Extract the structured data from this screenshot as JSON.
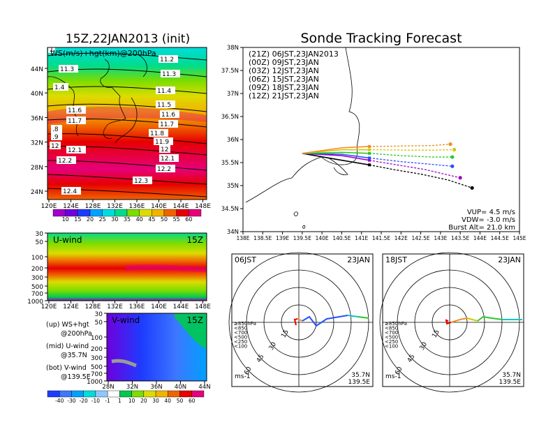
{
  "left_title": "15Z,22JAN2013 (init)",
  "right_title": "Sonde Tracking Forecast",
  "upper_map": {
    "inner_label": "WS(m/s)+hgt(km)@200hPa",
    "lat_ticks": [
      "44N",
      "40N",
      "36N",
      "32N",
      "28N",
      "24N"
    ],
    "lon_ticks": [
      "120E",
      "124E",
      "128E",
      "132E",
      "136E",
      "140E",
      "144E",
      "148E"
    ],
    "contour_labels": [
      "11.2",
      "11.3",
      "11.3",
      "11.4",
      "11.5",
      "11.6",
      "11.6",
      "11.7",
      "11.7",
      "11.8",
      "11.9",
      "12",
      "12",
      "12.1",
      "12.1",
      "12.2",
      "12.2",
      "12.3",
      "12.4",
      "1.4",
      ".8",
      ".9",
      "1"
    ],
    "colorbar": {
      "labels": [
        "10",
        "15",
        "20",
        "25",
        "30",
        "35",
        "40",
        "45",
        "50",
        "55",
        "60"
      ],
      "colors": [
        "#a000c8",
        "#6e00dc",
        "#1e3cff",
        "#00a0ff",
        "#00dcdc",
        "#00dc8c",
        "#7ddc00",
        "#dcdc00",
        "#f0b400",
        "#f06400",
        "#e60000",
        "#e6007a"
      ]
    }
  },
  "uwind": {
    "label": "U-wind",
    "time": "15Z",
    "p_ticks": [
      "30",
      "50",
      "100",
      "200",
      "300",
      "500",
      "700",
      "1000"
    ],
    "lon_ticks": [
      "120E",
      "124E",
      "128E",
      "132E",
      "136E",
      "140E",
      "144E",
      "148E"
    ]
  },
  "vwind": {
    "label": "V-wind",
    "time": "15Z",
    "p_ticks": [
      "30",
      "50",
      "100",
      "200",
      "300",
      "500",
      "700",
      "1000"
    ],
    "lat_ticks": [
      "28N",
      "32N",
      "36N",
      "40N",
      "44N"
    ],
    "colorbar": {
      "labels": [
        "-40",
        "-30",
        "-20",
        "-10",
        "-1",
        "1",
        "10",
        "20",
        "30",
        "40",
        "50",
        "60"
      ],
      "colors": [
        "#1e3cff",
        "#3c78ff",
        "#00a0ff",
        "#00dcdc",
        "#8cc8ff",
        "#ffffff",
        "#00c850",
        "#7ddc00",
        "#dcdc00",
        "#f0b400",
        "#f06400",
        "#e60000",
        "#e6007a"
      ]
    }
  },
  "notes": [
    {
      "a": "(up) WS+hgt",
      "b": "@200hPa"
    },
    {
      "a": "(mid) U-wind",
      "b": "@35.7N"
    },
    {
      "a": "(bot) V-wind",
      "b": "@139.5E"
    }
  ],
  "track_map": {
    "lat_ticks": [
      "38N",
      "37.5N",
      "37N",
      "36.5N",
      "36N",
      "35.5N",
      "35N",
      "34.5N",
      "34N"
    ],
    "lon_ticks": [
      "138E",
      "138.5E",
      "139E",
      "139.5E",
      "140E",
      "140.5E",
      "141E",
      "141.5E",
      "142E",
      "142.5E",
      "143E",
      "143.5E",
      "144E",
      "144.5E",
      "145E"
    ],
    "legend": [
      {
        "z": "(21Z)",
        "jst": "06JST,23JAN2013",
        "color": "#000000"
      },
      {
        "z": "(00Z)",
        "jst": "09JST,23JAN",
        "color": "#a000c8"
      },
      {
        "z": "(03Z)",
        "jst": "12JST,23JAN",
        "color": "#2850ff"
      },
      {
        "z": "(06Z)",
        "jst": "15JST,23JAN",
        "color": "#28c828"
      },
      {
        "z": "(09Z)",
        "jst": "18JST,23JAN",
        "color": "#d2c800"
      },
      {
        "z": "(12Z)",
        "jst": "21JST,23JAN",
        "color": "#f08c28"
      }
    ],
    "info": [
      "VUP= 4.5 m/s",
      "VDW= -3.0 m/s",
      "Burst Alt= 21.0 km"
    ]
  },
  "polar_left": {
    "time": "06JST",
    "date": "23JAN",
    "levels": [
      {
        "label": "≥850hPa",
        "color": "#e60000"
      },
      {
        "label": "<850",
        "color": "#f08c28"
      },
      {
        "label": "<700",
        "color": "#d2c800"
      },
      {
        "label": "<500",
        "color": "#28c828"
      },
      {
        "label": "<250",
        "color": "#00c8c8"
      },
      {
        "label": "<100",
        "color": "#2850ff"
      }
    ],
    "ring_labels": [
      "15",
      "30",
      "45",
      "60"
    ],
    "units": "ms-1",
    "lat": "35.7N",
    "lon": "139.5E"
  },
  "polar_right": {
    "time": "18JST",
    "date": "23JAN",
    "levels": [
      {
        "label": "≥850hPa",
        "color": "#e60000"
      },
      {
        "label": "<850",
        "color": "#f08c28"
      },
      {
        "label": "<700",
        "color": "#d2c800"
      },
      {
        "label": "<500",
        "color": "#28c828"
      },
      {
        "label": "<250",
        "color": "#00c8c8"
      },
      {
        "label": "<100",
        "color": "#2850ff"
      }
    ],
    "ring_labels": [
      "15",
      "30",
      "45",
      "60"
    ],
    "units": "ms-1",
    "lat": "35.7N",
    "lon": "139.5E"
  },
  "chart_data": [
    {
      "type": "line",
      "title": "Sonde Tracking Forecast",
      "xlabel": "",
      "ylabel": "",
      "xlim": [
        138,
        145
      ],
      "ylim": [
        34,
        38
      ],
      "launch": {
        "lon": 139.5,
        "lat": 35.7
      },
      "series": [
        {
          "name": "06JST,23JAN2013",
          "lon": [
            139.5,
            140.5,
            141.2,
            141.8,
            142.5,
            143.2,
            143.8
          ],
          "lat": [
            35.7,
            35.55,
            35.45,
            35.35,
            35.25,
            35.12,
            34.95
          ]
        },
        {
          "name": "09JST,23JAN",
          "lon": [
            139.5,
            140.5,
            141.2,
            141.9,
            142.6,
            143.5
          ],
          "lat": [
            35.7,
            35.65,
            35.55,
            35.45,
            35.35,
            35.17
          ]
        },
        {
          "name": "12JST,23JAN",
          "lon": [
            139.5,
            140.5,
            141.2,
            142.0,
            142.8,
            143.3
          ],
          "lat": [
            35.7,
            35.68,
            35.6,
            35.52,
            35.46,
            35.42
          ]
        },
        {
          "name": "15JST,23JAN",
          "lon": [
            139.5,
            140.5,
            141.2,
            142.0,
            142.8,
            143.3
          ],
          "lat": [
            35.7,
            35.72,
            35.7,
            35.65,
            35.62,
            35.62
          ]
        },
        {
          "name": "18JST,23JAN",
          "lon": [
            139.5,
            140.5,
            141.2,
            142.1,
            142.8,
            143.35
          ],
          "lat": [
            35.7,
            35.78,
            35.78,
            35.77,
            35.77,
            35.78
          ]
        },
        {
          "name": "21JST,23JAN",
          "lon": [
            139.5,
            140.5,
            141.2,
            142.1,
            142.8,
            143.25
          ],
          "lat": [
            35.7,
            35.82,
            35.85,
            35.86,
            35.87,
            35.9
          ]
        }
      ]
    }
  ]
}
